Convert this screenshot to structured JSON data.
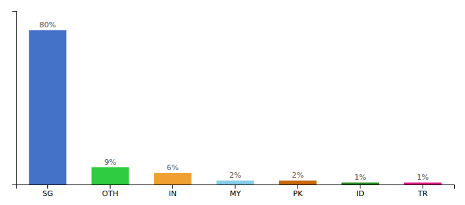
{
  "chart_data": {
    "type": "bar",
    "categories": [
      "SG",
      "OTH",
      "IN",
      "MY",
      "PK",
      "ID",
      "TR"
    ],
    "values": [
      80,
      9,
      6,
      2,
      2,
      1,
      1
    ],
    "value_labels": [
      "80%",
      "9%",
      "6%",
      "2%",
      "2%",
      "1%",
      "1%"
    ],
    "colors": [
      "#4472c9",
      "#2ecc40",
      "#f0a030",
      "#87ceeb",
      "#c8680a",
      "#228b22",
      "#e0197d"
    ],
    "ylim": [
      0,
      90
    ],
    "yticks": [],
    "grid": false,
    "tick_labels": "x"
  }
}
